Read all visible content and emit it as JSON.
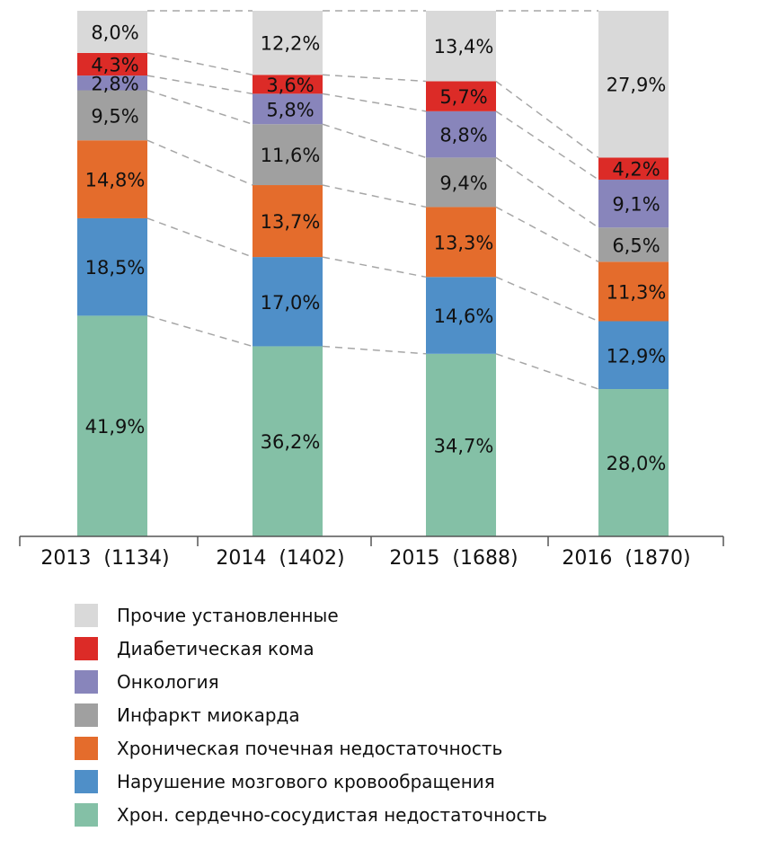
{
  "chart_data": {
    "type": "bar",
    "stacked": true,
    "percent": true,
    "categories": [
      "2013  (1134)",
      "2014  (1402)",
      "2015  (1688)",
      "2016  (1870)"
    ],
    "series": [
      {
        "name": "Хрон. сердечно-сосудистая недостаточность",
        "color": "#84c0a6",
        "values": [
          41.9,
          36.2,
          34.7,
          28.0
        ],
        "labels": [
          "41,9%",
          "36,2%",
          "34,7%",
          "28,0%"
        ]
      },
      {
        "name": "Нарушение мозгового кровообращения",
        "color": "#4f8fc8",
        "values": [
          18.5,
          17.0,
          14.6,
          12.9
        ],
        "labels": [
          "18,5%",
          "17,0%",
          "14,6%",
          "12,9%"
        ]
      },
      {
        "name": "Хроническая почечная недостаточность",
        "color": "#e46c2c",
        "values": [
          14.8,
          13.7,
          13.3,
          11.3
        ],
        "labels": [
          "14,8%",
          "13,7%",
          "13,3%",
          "11,3%"
        ]
      },
      {
        "name": "Инфаркт миокарда",
        "color": "#a0a0a0",
        "values": [
          9.5,
          11.6,
          9.4,
          6.5
        ],
        "labels": [
          "9,5%",
          "11,6%",
          "9,4%",
          "6,5%"
        ]
      },
      {
        "name": "Онкология",
        "color": "#8885bb",
        "values": [
          2.8,
          5.8,
          8.8,
          9.1
        ],
        "labels": [
          "2,8%",
          "5,8%",
          "8,8%",
          "9,1%"
        ]
      },
      {
        "name": "Диабетическая кома",
        "color": "#dc2b27",
        "values": [
          4.3,
          3.6,
          5.7,
          4.2
        ],
        "labels": [
          "4,3%",
          "3,6%",
          "5,7%",
          "4,2%"
        ]
      },
      {
        "name": "Прочие установленные",
        "color": "#d9d9d9",
        "values": [
          8.0,
          12.2,
          13.4,
          27.9
        ],
        "labels": [
          "8,0%",
          "12,2%",
          "13,4%",
          "27,9%"
        ]
      }
    ],
    "legend_order": [
      6,
      5,
      4,
      3,
      2,
      1,
      0
    ],
    "legend": "bottom",
    "ylim": [
      0,
      100
    ],
    "grid": false,
    "connector_lines": "dashed"
  }
}
